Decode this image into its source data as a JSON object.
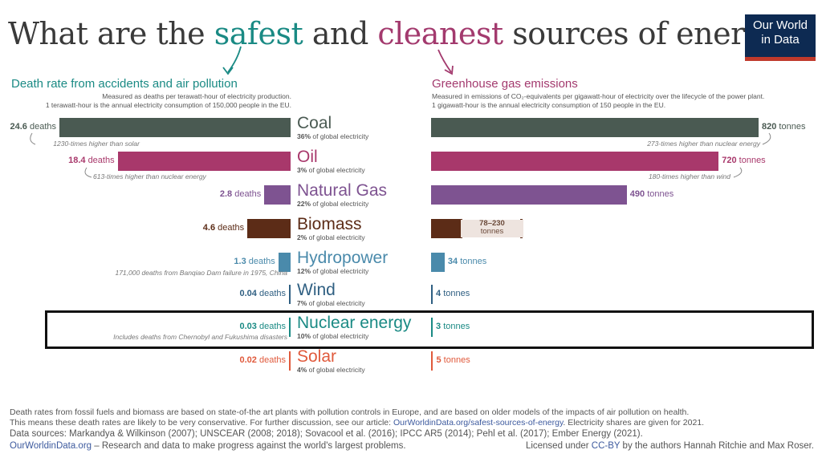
{
  "title": {
    "pre": "What are the ",
    "safe": "safest",
    "mid": " and ",
    "clean": "cleanest",
    "post": " sources of energy?"
  },
  "logo": {
    "line1": "Our World",
    "line2": "in Data"
  },
  "left_panel": {
    "heading": "Death rate from accidents and air pollution",
    "sub1": "Measured as deaths per terawatt-hour of electricity production.",
    "sub2": "1 terawatt-hour is the annual electricity consumption of 150,000 people in the EU."
  },
  "right_panel": {
    "heading": "Greenhouse gas emissions",
    "sub1": "Measured in emissions of CO₂-equivalents per gigawatt-hour of electricity over the lifecycle of the power plant.",
    "sub2": "1 gigawatt-hour is the annual electricity consumption of 150 people in the EU."
  },
  "chart_data": {
    "type": "bar",
    "categories": [
      "Coal",
      "Oil",
      "Natural Gas",
      "Biomass",
      "Hydropower",
      "Wind",
      "Nuclear energy",
      "Solar"
    ],
    "series": [
      {
        "name": "Death rate from accidents and air pollution",
        "unit": "deaths per TWh",
        "values": [
          24.6,
          18.4,
          2.8,
          4.6,
          1.3,
          0.04,
          0.03,
          0.02
        ]
      },
      {
        "name": "Greenhouse gas emissions",
        "unit": "tonnes CO2-eq per GWh",
        "values": [
          820,
          720,
          490,
          230,
          34,
          4,
          3,
          5
        ],
        "biomass_range": [
          78,
          230
        ]
      }
    ],
    "shares": [
      "36%",
      "3%",
      "22%",
      "2%",
      "12%",
      "7%",
      "10%",
      "4%"
    ],
    "death_labels": [
      "24.6",
      "18.4",
      "2.8",
      "4.6",
      "1.3",
      "0.04",
      "0.03",
      "0.02"
    ],
    "death_unit": "deaths",
    "emission_labels": [
      "820",
      "720",
      "490",
      "",
      "34",
      "4",
      "3",
      "5"
    ],
    "emission_unit": "tonnes",
    "share_suffix": "of global electricity",
    "biomass_range_label": {
      "range": "78–230",
      "unit": "tonnes"
    },
    "colors": [
      "#4a5a52",
      "#a8386b",
      "#7e5391",
      "#5c2c17",
      "#4a8aab",
      "#2f5f82",
      "#1a8a84",
      "#e05a3c"
    ],
    "notes": {
      "coal_death": "1230-times higher than solar",
      "oil_death": "613-times higher than nuclear energy",
      "hydro_death": "171,000 deaths from Banqiao Dam failure in 1975, China",
      "nuclear_death": "Includes deaths from Chernobyl and Fukushima disasters",
      "coal_emission": "273-times higher than nuclear energy",
      "oil_emission": "180-times higher than wind"
    }
  },
  "footer": {
    "line1": "Death rates from fossil fuels and biomass are based on state-of-the art plants with pollution controls in Europe, and are based on older models of the impacts of air pollution on health.",
    "line2_pre": "This means these death rates are likely to be very conservative. For further discussion, see our article: ",
    "line2_link": "OurWorldinData.org/safest-sources-of-energy",
    "line2_post": ". Electricity shares are given for 2021.",
    "line3": "Data sources: Markandya & Wilkinson (2007); UNSCEAR (2008; 2018); Sovacool et al. (2016); IPCC AR5 (2014); Pehl et al. (2017); Ember Energy (2021).",
    "owid_link": "OurWorldinData.org",
    "owid_tagline": " – Research and data to make progress against the world's largest problems.",
    "license_pre": "Licensed under ",
    "license_link": "CC-BY",
    "license_post": " by the authors Hannah Ritchie and Max Roser."
  }
}
